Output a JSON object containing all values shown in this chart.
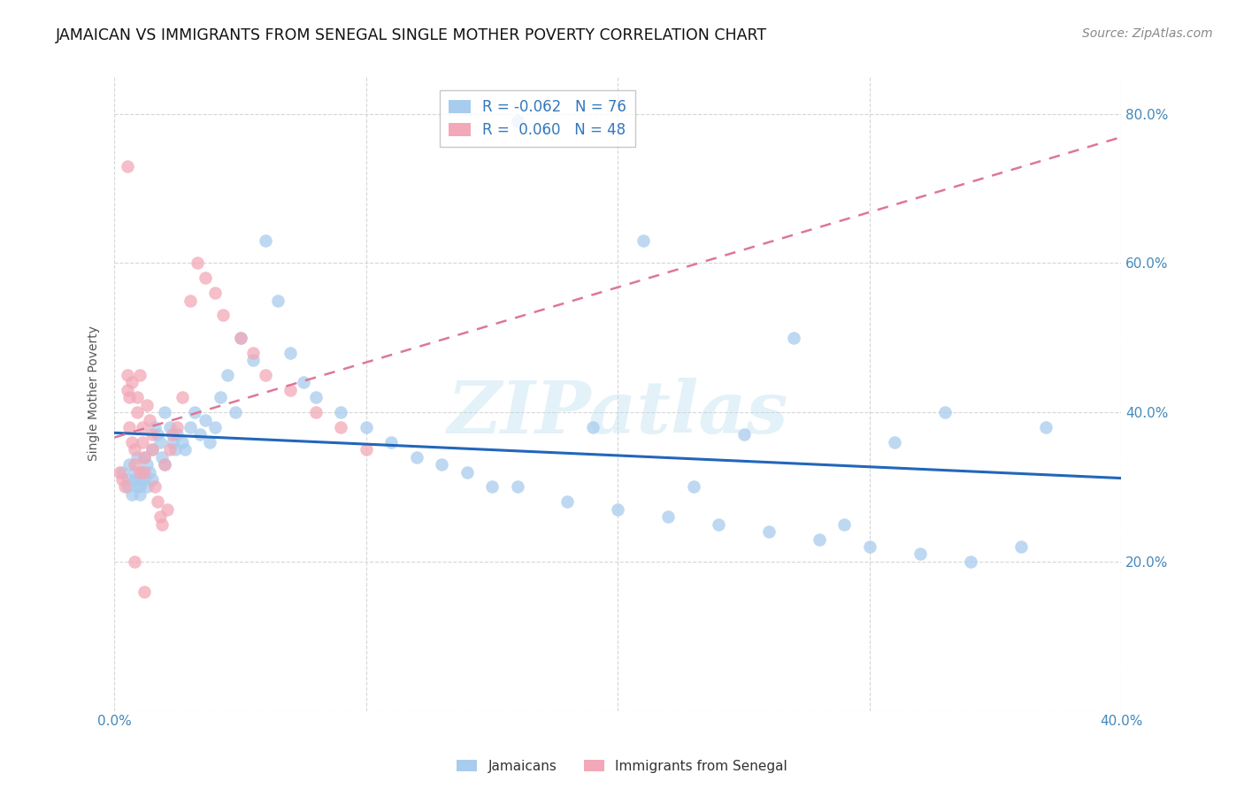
{
  "title": "JAMAICAN VS IMMIGRANTS FROM SENEGAL SINGLE MOTHER POVERTY CORRELATION CHART",
  "source": "Source: ZipAtlas.com",
  "ylabel": "Single Mother Poverty",
  "xlim": [
    0.0,
    0.4
  ],
  "ylim": [
    0.0,
    0.85
  ],
  "yticks": [
    0.0,
    0.2,
    0.4,
    0.6,
    0.8
  ],
  "xticks": [
    0.0,
    0.1,
    0.2,
    0.3,
    0.4
  ],
  "xtick_labels": [
    "0.0%",
    "",
    "",
    "",
    "40.0%"
  ],
  "ytick_labels": [
    "",
    "20.0%",
    "40.0%",
    "60.0%",
    "80.0%"
  ],
  "blue_R": -0.062,
  "blue_N": 76,
  "pink_R": 0.06,
  "pink_N": 48,
  "blue_color": "#A8CCEE",
  "pink_color": "#F2A8B8",
  "blue_line_color": "#2266BB",
  "pink_line_color": "#DD7799",
  "watermark": "ZIPatlas",
  "legend_label_blue": "Jamaicans",
  "legend_label_pink": "Immigrants from Senegal",
  "blue_scatter_x": [
    0.003,
    0.005,
    0.005,
    0.006,
    0.007,
    0.008,
    0.008,
    0.009,
    0.009,
    0.01,
    0.01,
    0.01,
    0.011,
    0.012,
    0.012,
    0.013,
    0.013,
    0.014,
    0.015,
    0.015,
    0.016,
    0.017,
    0.018,
    0.019,
    0.02,
    0.02,
    0.022,
    0.023,
    0.024,
    0.025,
    0.027,
    0.028,
    0.03,
    0.032,
    0.034,
    0.036,
    0.038,
    0.04,
    0.042,
    0.045,
    0.048,
    0.05,
    0.055,
    0.06,
    0.065,
    0.07,
    0.075,
    0.08,
    0.09,
    0.1,
    0.11,
    0.12,
    0.13,
    0.14,
    0.15,
    0.16,
    0.18,
    0.2,
    0.22,
    0.24,
    0.26,
    0.28,
    0.3,
    0.32,
    0.34,
    0.36,
    0.16,
    0.21,
    0.27,
    0.33,
    0.19,
    0.25,
    0.31,
    0.37,
    0.23,
    0.29
  ],
  "blue_scatter_y": [
    0.32,
    0.31,
    0.3,
    0.33,
    0.29,
    0.32,
    0.31,
    0.3,
    0.34,
    0.31,
    0.3,
    0.29,
    0.32,
    0.34,
    0.31,
    0.3,
    0.33,
    0.32,
    0.31,
    0.35,
    0.38,
    0.37,
    0.36,
    0.34,
    0.33,
    0.4,
    0.38,
    0.36,
    0.35,
    0.37,
    0.36,
    0.35,
    0.38,
    0.4,
    0.37,
    0.39,
    0.36,
    0.38,
    0.42,
    0.45,
    0.4,
    0.5,
    0.47,
    0.63,
    0.55,
    0.48,
    0.44,
    0.42,
    0.4,
    0.38,
    0.36,
    0.34,
    0.33,
    0.32,
    0.3,
    0.3,
    0.28,
    0.27,
    0.26,
    0.25,
    0.24,
    0.23,
    0.22,
    0.21,
    0.2,
    0.22,
    0.79,
    0.63,
    0.5,
    0.4,
    0.38,
    0.37,
    0.36,
    0.38,
    0.3,
    0.25
  ],
  "pink_scatter_x": [
    0.002,
    0.003,
    0.004,
    0.005,
    0.005,
    0.006,
    0.006,
    0.007,
    0.007,
    0.008,
    0.008,
    0.009,
    0.009,
    0.01,
    0.01,
    0.011,
    0.011,
    0.012,
    0.012,
    0.013,
    0.014,
    0.015,
    0.015,
    0.016,
    0.017,
    0.018,
    0.019,
    0.02,
    0.021,
    0.022,
    0.023,
    0.025,
    0.027,
    0.03,
    0.033,
    0.036,
    0.04,
    0.043,
    0.05,
    0.055,
    0.06,
    0.07,
    0.08,
    0.09,
    0.1,
    0.005,
    0.008,
    0.012
  ],
  "pink_scatter_y": [
    0.32,
    0.31,
    0.3,
    0.45,
    0.43,
    0.42,
    0.38,
    0.36,
    0.44,
    0.35,
    0.33,
    0.42,
    0.4,
    0.45,
    0.32,
    0.38,
    0.36,
    0.34,
    0.32,
    0.41,
    0.39,
    0.37,
    0.35,
    0.3,
    0.28,
    0.26,
    0.25,
    0.33,
    0.27,
    0.35,
    0.37,
    0.38,
    0.42,
    0.55,
    0.6,
    0.58,
    0.56,
    0.53,
    0.5,
    0.48,
    0.45,
    0.43,
    0.4,
    0.38,
    0.35,
    0.73,
    0.2,
    0.16
  ]
}
